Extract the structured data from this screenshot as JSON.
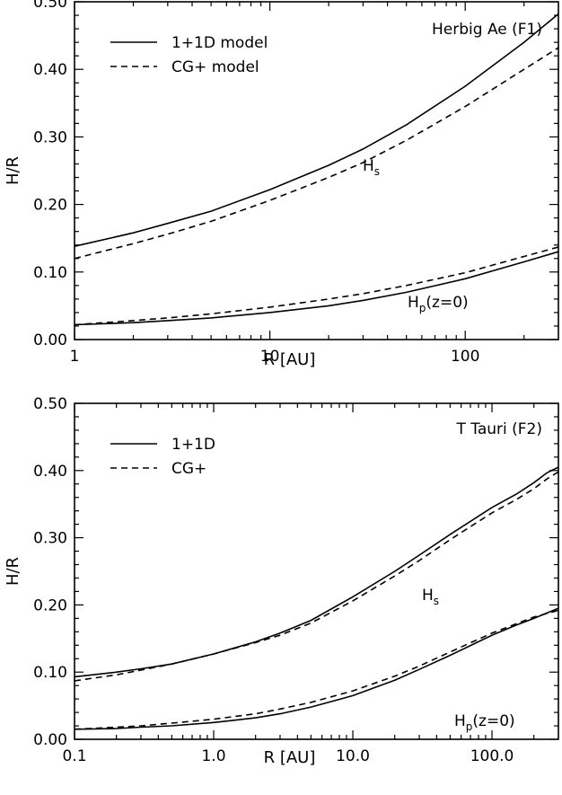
{
  "chart_data": [
    {
      "type": "line",
      "id": "herbig",
      "xscale": "log",
      "xlim": [
        1,
        300
      ],
      "ylim": [
        0.0,
        0.5
      ],
      "xticks": [
        1,
        10,
        100
      ],
      "xtick_labels": [
        "1",
        "10",
        "100"
      ],
      "yticks": [
        0.0,
        0.1,
        0.2,
        0.3,
        0.4,
        0.5
      ],
      "ytick_labels": [
        "0.00",
        "0.10",
        "0.20",
        "0.30",
        "0.40",
        "0.50"
      ],
      "xlabel": "R [AU]",
      "ylabel": "H/R",
      "title": "",
      "annotation_title": "Herbig Ae (F1)",
      "legend_position": "top-left",
      "legend": [
        {
          "label": "1+1D model",
          "style": "solid"
        },
        {
          "label": "CG+ model",
          "style": "dashed"
        }
      ],
      "curve_labels": [
        {
          "main": "H",
          "sub": "s",
          "suffix": ""
        },
        {
          "main": "H",
          "sub": "p",
          "suffix": "(z=0)"
        }
      ],
      "series": [
        {
          "curve": "Hs",
          "style": "solid",
          "x": [
            1,
            2,
            3,
            5,
            10,
            20,
            30,
            50,
            100,
            200,
            300
          ],
          "y": [
            0.138,
            0.158,
            0.172,
            0.19,
            0.222,
            0.258,
            0.282,
            0.318,
            0.375,
            0.44,
            0.482
          ]
        },
        {
          "curve": "Hs",
          "style": "dashed",
          "x": [
            1,
            2,
            3,
            5,
            10,
            20,
            30,
            50,
            100,
            200,
            300
          ],
          "y": [
            0.12,
            0.142,
            0.156,
            0.175,
            0.206,
            0.24,
            0.262,
            0.295,
            0.345,
            0.4,
            0.432
          ]
        },
        {
          "curve": "Hp",
          "style": "solid",
          "x": [
            1,
            2,
            3,
            5,
            10,
            20,
            30,
            50,
            100,
            200,
            300
          ],
          "y": [
            0.022,
            0.025,
            0.028,
            0.032,
            0.04,
            0.05,
            0.058,
            0.07,
            0.09,
            0.115,
            0.13
          ]
        },
        {
          "curve": "Hp",
          "style": "dashed",
          "x": [
            1,
            2,
            3,
            5,
            10,
            20,
            30,
            50,
            100,
            200,
            300
          ],
          "y": [
            0.022,
            0.028,
            0.032,
            0.038,
            0.048,
            0.06,
            0.068,
            0.08,
            0.099,
            0.123,
            0.137
          ]
        }
      ]
    },
    {
      "type": "line",
      "id": "ttauri",
      "xscale": "log",
      "xlim": [
        0.1,
        300
      ],
      "ylim": [
        0.0,
        0.5
      ],
      "xticks": [
        0.1,
        1,
        10,
        100
      ],
      "xtick_labels": [
        "0.1",
        "1.0",
        "10.0",
        "100.0"
      ],
      "yticks": [
        0.0,
        0.1,
        0.2,
        0.3,
        0.4,
        0.5
      ],
      "ytick_labels": [
        "0.00",
        "0.10",
        "0.20",
        "0.30",
        "0.40",
        "0.50"
      ],
      "xlabel": "R [AU]",
      "ylabel": "H/R",
      "title": "",
      "annotation_title": "T Tauri (F2)",
      "legend_position": "top-left",
      "legend": [
        {
          "label": "1+1D",
          "style": "solid"
        },
        {
          "label": "CG+",
          "style": "dashed"
        }
      ],
      "curve_labels": [
        {
          "main": "H",
          "sub": "s",
          "suffix": ""
        },
        {
          "main": "H",
          "sub": "p",
          "suffix": "(z=0)"
        }
      ],
      "series": [
        {
          "curve": "Hs",
          "style": "solid",
          "x": [
            0.1,
            0.2,
            0.3,
            0.5,
            1,
            2,
            3,
            5,
            10,
            20,
            30,
            50,
            100,
            150,
            200,
            250,
            300
          ],
          "y": [
            0.093,
            0.1,
            0.105,
            0.112,
            0.127,
            0.145,
            0.158,
            0.177,
            0.212,
            0.25,
            0.274,
            0.305,
            0.345,
            0.365,
            0.382,
            0.397,
            0.405
          ]
        },
        {
          "curve": "Hs",
          "style": "dashed",
          "x": [
            0.1,
            0.2,
            0.3,
            0.5,
            1,
            2,
            3,
            5,
            10,
            20,
            30,
            50,
            100,
            150,
            200,
            250,
            300
          ],
          "y": [
            0.087,
            0.096,
            0.103,
            0.112,
            0.127,
            0.144,
            0.155,
            0.173,
            0.206,
            0.243,
            0.266,
            0.297,
            0.337,
            0.357,
            0.373,
            0.388,
            0.398
          ]
        },
        {
          "curve": "Hp",
          "style": "solid",
          "x": [
            0.1,
            0.2,
            0.3,
            0.5,
            1,
            2,
            3,
            5,
            10,
            20,
            30,
            50,
            100,
            150,
            200,
            300
          ],
          "y": [
            0.015,
            0.016,
            0.018,
            0.02,
            0.025,
            0.032,
            0.038,
            0.048,
            0.065,
            0.088,
            0.104,
            0.125,
            0.155,
            0.17,
            0.18,
            0.195
          ]
        },
        {
          "curve": "Hp",
          "style": "dashed",
          "x": [
            0.1,
            0.2,
            0.3,
            0.5,
            1,
            2,
            3,
            5,
            10,
            20,
            30,
            50,
            100,
            150,
            200,
            300
          ],
          "y": [
            0.015,
            0.018,
            0.02,
            0.024,
            0.03,
            0.038,
            0.045,
            0.055,
            0.072,
            0.094,
            0.109,
            0.13,
            0.158,
            0.172,
            0.182,
            0.192
          ]
        }
      ]
    }
  ]
}
